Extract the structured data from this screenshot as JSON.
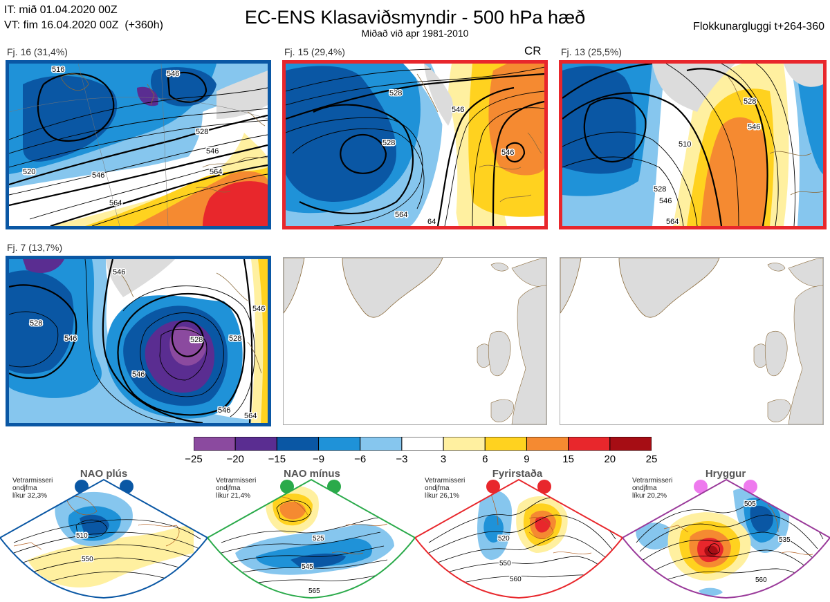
{
  "header": {
    "it_line": "IT: mið 01.04.2020 00Z",
    "vt_line": "VT: fim 16.04.2020 00Z  (+360h)",
    "title": "EC-ENS Klasaviðsmyndir - 500 hPa hæð",
    "subtitle": "Miðað við apr 1981-2010",
    "window": "Flokkunargluggi t+264-360"
  },
  "panels": [
    {
      "label": "Fj. 16 (31,4%)",
      "regime": "nao-plus",
      "border": "#0a57a4",
      "extra": ""
    },
    {
      "label": "Fj. 15 (29,4%)",
      "regime": "blocking",
      "border": "#e8272c",
      "extra": "CR"
    },
    {
      "label": "Fj. 13 (25,5%)",
      "regime": "blocking",
      "border": "#e8272c",
      "extra": ""
    },
    {
      "label": "Fj. 7 (13,7%)",
      "regime": "nao-plus",
      "border": "#0a57a4",
      "extra": ""
    }
  ],
  "contour_labels": {
    "p1": [
      "516",
      "546",
      "528",
      "546",
      "564",
      "546",
      "520",
      "546",
      "564"
    ],
    "p2": [
      "528",
      "546",
      "528",
      "546",
      "564",
      "64"
    ],
    "p3": [
      "528",
      "546",
      "510",
      "528",
      "546",
      "564"
    ],
    "p4": [
      "546",
      "528",
      "546",
      "528",
      "546",
      "546",
      "528",
      "546",
      "564"
    ]
  },
  "colorbar": {
    "ticks": [
      "−25",
      "−20",
      "−15",
      "−9",
      "−6",
      "−3",
      "3",
      "6",
      "9",
      "15",
      "20",
      "25"
    ],
    "colors": [
      "#8b4a9f",
      "#5a2d91",
      "#0a57a4",
      "#1f92d8",
      "#86c6ee",
      "#ffffff",
      "#fff0a0",
      "#ffd21f",
      "#f58a31",
      "#e8272c",
      "#a60d14"
    ]
  },
  "regimes": [
    {
      "title": "NAO plús",
      "note": "Vetrarmisseri\nondjfma\nlíkur 32,3%",
      "color": "#0a57a4",
      "labels": [
        "510",
        "550"
      ]
    },
    {
      "title": "NAO mínus",
      "note": "Vetrarmisseri\nondjfma\nlíkur 21,4%",
      "color": "#2aaa4a",
      "labels": [
        "525",
        "545",
        "565"
      ]
    },
    {
      "title": "Fyrirstaða",
      "note": "Vetrarmisseri\nondjfma\nlíkur 26,1%",
      "color": "#e8272c",
      "labels": [
        "520",
        "550",
        "560"
      ]
    },
    {
      "title": "Hryggur",
      "note": "Vetrarmisseri\nondjfma\nlíkur 20,2%",
      "color": "#9a3a9a",
      "labels": [
        "505",
        "535",
        "560"
      ],
      "dot_color": "#ee7aee"
    }
  ]
}
